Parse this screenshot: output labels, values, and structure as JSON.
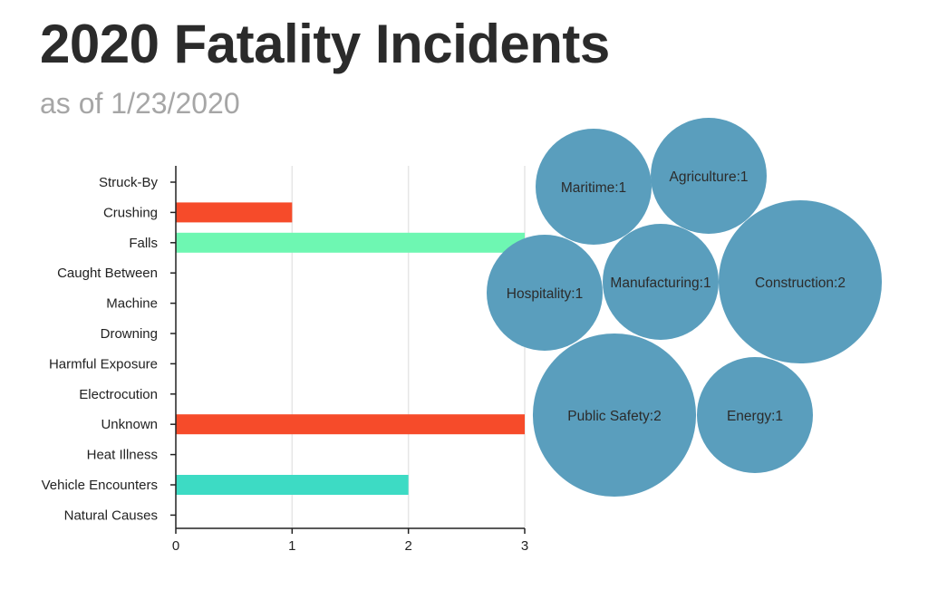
{
  "title": "2020 Fatality Incidents",
  "subtitle": "as of 1/23/2020",
  "chart_data": [
    {
      "type": "bar",
      "orientation": "horizontal",
      "categories": [
        "Struck-By",
        "Crushing",
        "Falls",
        "Caught Between",
        "Machine",
        "Drowning",
        "Harmful Exposure",
        "Electrocution",
        "Unknown",
        "Heat Illness",
        "Vehicle Encounters",
        "Natural Causes"
      ],
      "values": [
        0,
        1,
        3,
        0,
        0,
        0,
        0,
        0,
        3,
        0,
        2,
        0
      ],
      "colors": [
        "#f64b2a",
        "#f64b2a",
        "#6ef7b2",
        "#f64b2a",
        "#f64b2a",
        "#f64b2a",
        "#f64b2a",
        "#f64b2a",
        "#f64b2a",
        "#6ef7b2",
        "#3ddbc4",
        "#f64b2a"
      ],
      "xlim": [
        0,
        3
      ],
      "xticks": [
        0,
        1,
        2,
        3
      ],
      "grid": true
    },
    {
      "type": "bubble",
      "color": "#5a9ebd",
      "items": [
        {
          "label": "Maritime:1",
          "name": "Maritime",
          "value": 1
        },
        {
          "label": "Agriculture:1",
          "name": "Agriculture",
          "value": 1
        },
        {
          "label": "Hospitality:1",
          "name": "Hospitality",
          "value": 1
        },
        {
          "label": "Manufacturing:1",
          "name": "Manufacturing",
          "value": 1
        },
        {
          "label": "Construction:2",
          "name": "Construction",
          "value": 2
        },
        {
          "label": "Public Safety:2",
          "name": "Public Safety",
          "value": 2
        },
        {
          "label": "Energy:1",
          "name": "Energy",
          "value": 1
        }
      ]
    }
  ]
}
